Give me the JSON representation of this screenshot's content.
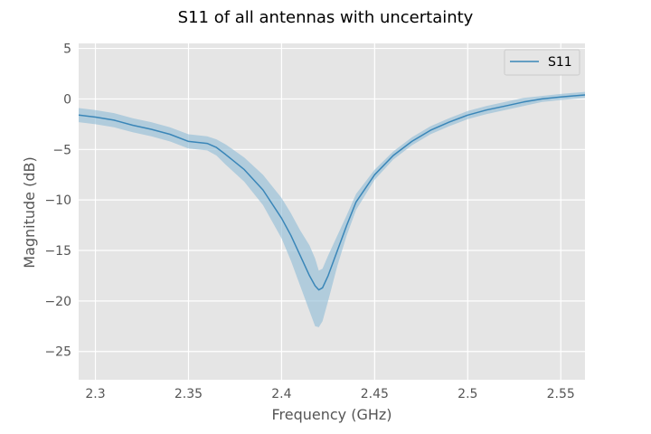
{
  "chart_data": {
    "type": "line",
    "title": "S11 of all antennas with uncertainty",
    "xlabel": "Frequency (GHz)",
    "ylabel": "Magnitude (dB)",
    "xlim": [
      2.291,
      2.563
    ],
    "ylim": [
      -27.8,
      5.5
    ],
    "xticks": [
      2.3,
      2.35,
      2.4,
      2.45,
      2.5,
      2.55
    ],
    "xtick_labels": [
      "2.3",
      "2.35",
      "2.4",
      "2.45",
      "2.5",
      "2.55"
    ],
    "yticks": [
      5,
      0,
      -5,
      -10,
      -15,
      -20,
      -25
    ],
    "ytick_labels": [
      "5",
      "0",
      "−5",
      "−10",
      "−15",
      "−20",
      "−25"
    ],
    "grid": true,
    "legend_position": "top-right",
    "colors": {
      "line": "#3a86b8",
      "band": "#8ebad6",
      "background": "#e5e5e5",
      "grid": "#ffffff"
    },
    "series": [
      {
        "name": "S11",
        "x": [
          2.291,
          2.3,
          2.31,
          2.32,
          2.33,
          2.34,
          2.35,
          2.36,
          2.365,
          2.37,
          2.38,
          2.39,
          2.4,
          2.405,
          2.41,
          2.415,
          2.418,
          2.42,
          2.422,
          2.425,
          2.43,
          2.435,
          2.44,
          2.45,
          2.46,
          2.47,
          2.48,
          2.49,
          2.5,
          2.51,
          2.52,
          2.53,
          2.54,
          2.55,
          2.563
        ],
        "y": [
          -1.6,
          -1.8,
          -2.1,
          -2.6,
          -3.0,
          -3.5,
          -4.2,
          -4.4,
          -4.8,
          -5.5,
          -7.0,
          -9.0,
          -11.8,
          -13.5,
          -15.5,
          -17.5,
          -18.5,
          -18.9,
          -18.7,
          -17.5,
          -15.0,
          -12.5,
          -10.2,
          -7.5,
          -5.6,
          -4.2,
          -3.1,
          -2.3,
          -1.6,
          -1.1,
          -0.7,
          -0.3,
          0.0,
          0.2,
          0.4
        ],
        "lower": [
          -2.3,
          -2.5,
          -2.8,
          -3.3,
          -3.7,
          -4.2,
          -4.9,
          -5.1,
          -5.6,
          -6.5,
          -8.2,
          -10.5,
          -13.8,
          -16.0,
          -18.5,
          -21.0,
          -22.5,
          -22.6,
          -22.0,
          -20.0,
          -16.5,
          -13.5,
          -11.0,
          -8.0,
          -6.0,
          -4.6,
          -3.5,
          -2.7,
          -2.0,
          -1.5,
          -1.1,
          -0.7,
          -0.3,
          -0.1,
          0.1
        ],
        "upper": [
          -0.9,
          -1.1,
          -1.4,
          -1.9,
          -2.3,
          -2.8,
          -3.5,
          -3.7,
          -4.0,
          -4.5,
          -5.8,
          -7.5,
          -9.8,
          -11.3,
          -13.0,
          -14.5,
          -15.8,
          -17.0,
          -16.8,
          -15.5,
          -13.5,
          -11.5,
          -9.4,
          -7.0,
          -5.2,
          -3.8,
          -2.7,
          -1.9,
          -1.2,
          -0.7,
          -0.3,
          0.1,
          0.3,
          0.5,
          0.7
        ]
      }
    ]
  }
}
